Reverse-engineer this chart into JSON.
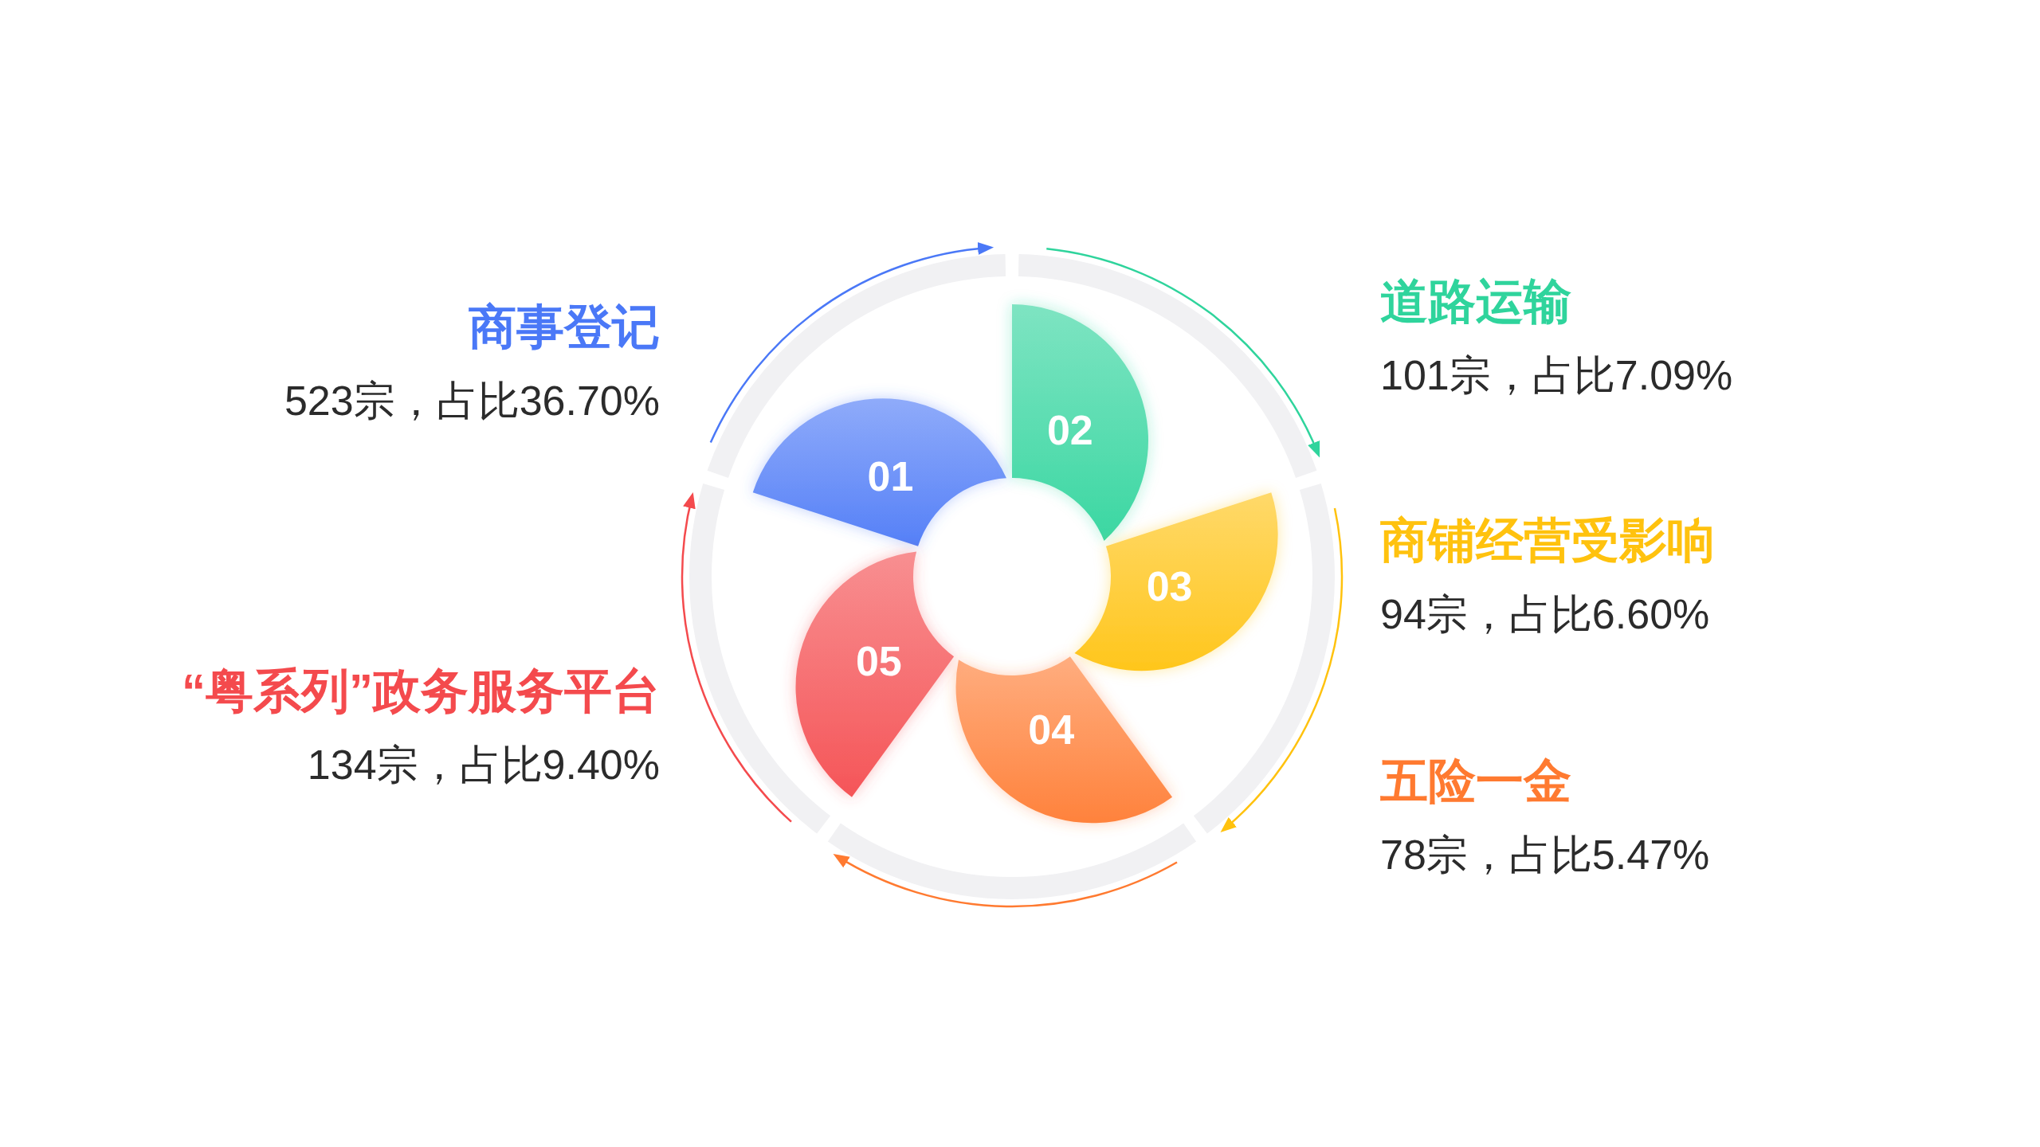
{
  "chart_data": {
    "type": "other",
    "categories": [
      "商事登记",
      "道路运输",
      "商铺经营受影响",
      "五险一金",
      "“粤系列”政务服务平台"
    ],
    "values": [
      523,
      101,
      94,
      78,
      134
    ],
    "value_labels": [
      "523宗，占比36.70%",
      "101宗，占比7.09%",
      "94宗，占比6.60%",
      "78宗，占比5.47%",
      "134宗，占比9.40%"
    ],
    "colors": [
      "#4a78f7",
      "#2fd49c",
      "#ffc20e",
      "#ff7a30",
      "#f44a4d"
    ],
    "annotations": [
      "01",
      "02",
      "03",
      "04",
      "05"
    ]
  }
}
